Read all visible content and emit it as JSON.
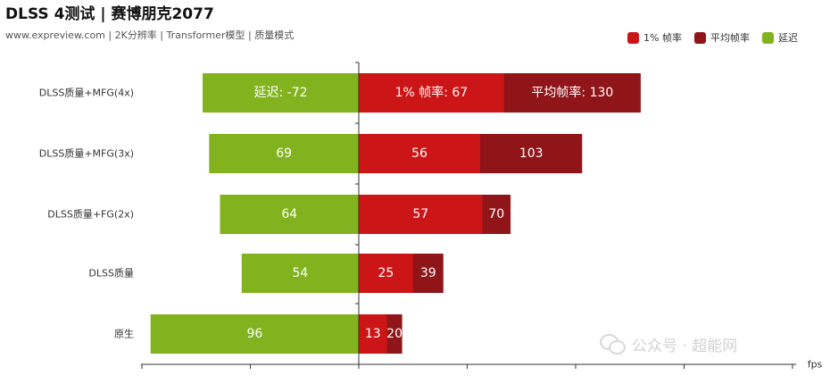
{
  "chart_data": {
    "type": "bar",
    "orientation": "horizontal-diverging",
    "title": "DLSS 4测试 | 赛博朋克2077",
    "subtitle": "www.expreview.com | 2K分辨率 | Transformer模型 | 质量模式",
    "xlabel": "fps",
    "categories": [
      "DLSS质量+MFG(4x)",
      "DLSS质量+MFG(3x)",
      "DLSS质量+FG(2x)",
      "DLSS质量",
      "原生"
    ],
    "series": [
      {
        "name": "1% 帧率",
        "color": "#cc1517",
        "values": [
          67,
          56,
          57,
          25,
          13
        ]
      },
      {
        "name": "平均帧率",
        "color": "#8f1519",
        "values": [
          130,
          103,
          70,
          39,
          20
        ]
      },
      {
        "name": "延迟",
        "color": "#82b31e",
        "values": [
          -72,
          69,
          64,
          54,
          96
        ]
      }
    ],
    "bar_labels": [
      {
        "latency": "延迟: -72",
        "low1": "1% 帧率: 67",
        "avg": "平均帧率: 130"
      },
      {
        "latency": "69",
        "low1": "56",
        "avg": "103"
      },
      {
        "latency": "64",
        "low1": "57",
        "avg": "70"
      },
      {
        "latency": "54",
        "low1": "25",
        "avg": "39"
      },
      {
        "latency": "96",
        "low1": "13",
        "avg": "20"
      }
    ],
    "legend_position": "top-right",
    "grid": false,
    "xlim": [
      -100,
      200
    ]
  },
  "watermark": "公众号 · 超能网"
}
